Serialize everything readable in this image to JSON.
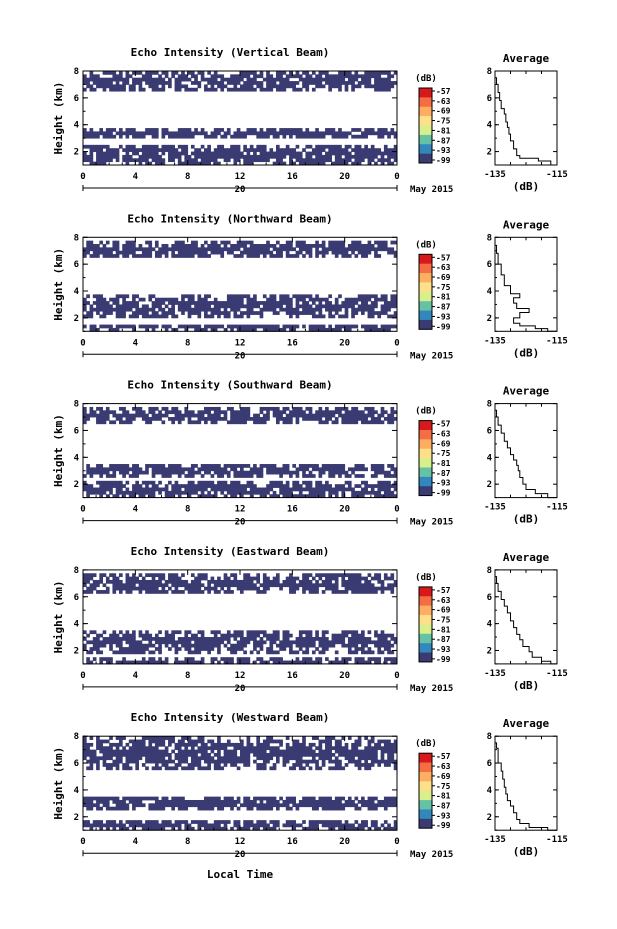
{
  "figure": {
    "xlabel": "Local Time",
    "colors": {
      "echo": "#3b3b73",
      "background": "#ffffff",
      "axis": "#000000"
    }
  },
  "chart_data": [
    {
      "type": "heatmap",
      "title": "Echo Intensity (Vertical Beam)",
      "ylabel": "Height (km)",
      "x_ticks": [
        "0",
        "4",
        "8",
        "12",
        "16",
        "20",
        "0"
      ],
      "xlim": [
        0,
        24
      ],
      "ylim": [
        1,
        8
      ],
      "y_ticks": [
        "2",
        "4",
        "6",
        "8"
      ],
      "day_label": "20",
      "month_label": "May 2015",
      "colorbar": {
        "unit": "(dB)",
        "ticks": [
          "-57",
          "-63",
          "-69",
          "-75",
          "-81",
          "-87",
          "-93",
          "-99"
        ]
      },
      "echo_bands_km": [
        [
          1.0,
          2.5
        ],
        [
          2.9,
          3.8
        ],
        [
          6.6,
          7.9
        ]
      ],
      "average": {
        "title": "Average",
        "xlabel": "(dB)",
        "x_ticks": [
          "-135",
          "-115"
        ],
        "y_ticks": [
          "2",
          "4",
          "6",
          "8"
        ],
        "xlim": [
          -135,
          -115
        ],
        "ylim": [
          1,
          8
        ],
        "x": [
          -115,
          -117,
          -121,
          -127,
          -128,
          -129,
          -130,
          -130.5,
          -131,
          -131.5,
          -132,
          -133,
          -133.5,
          -134,
          -134.5,
          -135
        ],
        "y": [
          1.0,
          1.3,
          1.5,
          1.7,
          2.2,
          2.8,
          3.3,
          3.8,
          4.2,
          4.8,
          5.2,
          5.8,
          6.4,
          7.0,
          7.5,
          8.0
        ]
      }
    },
    {
      "type": "heatmap",
      "title": "Echo Intensity (Northward Beam)",
      "ylabel": "Height (km)",
      "x_ticks": [
        "0",
        "4",
        "8",
        "12",
        "16",
        "20",
        "0"
      ],
      "xlim": [
        0,
        24
      ],
      "ylim": [
        1,
        8
      ],
      "y_ticks": [
        "2",
        "4",
        "6",
        "8"
      ],
      "day_label": "20",
      "month_label": "May 2015",
      "colorbar": {
        "unit": "(dB)",
        "ticks": [
          "-57",
          "-63",
          "-69",
          "-75",
          "-81",
          "-87",
          "-93",
          "-99"
        ]
      },
      "echo_bands_km": [
        [
          1.0,
          1.6
        ],
        [
          2.0,
          3.7
        ],
        [
          6.5,
          7.8
        ]
      ],
      "average": {
        "title": "Average",
        "xlabel": "(dB)",
        "x_ticks": [
          "-135",
          "-115"
        ],
        "y_ticks": [
          "2",
          "4",
          "6",
          "8"
        ],
        "xlim": [
          -135,
          -115
        ],
        "ylim": [
          1,
          8
        ],
        "x": [
          -115,
          -118,
          -122,
          -127,
          -129,
          -127,
          -124,
          -128,
          -129,
          -127,
          -130,
          -132,
          -133,
          -134,
          -134.5,
          -135
        ],
        "y": [
          1.0,
          1.2,
          1.4,
          1.6,
          2.0,
          2.4,
          2.7,
          3.1,
          3.5,
          3.8,
          4.4,
          5.2,
          6.0,
          6.8,
          7.4,
          8.0
        ]
      }
    },
    {
      "type": "heatmap",
      "title": "Echo Intensity (Southward Beam)",
      "ylabel": "Height (km)",
      "x_ticks": [
        "0",
        "4",
        "8",
        "12",
        "16",
        "20",
        "0"
      ],
      "xlim": [
        0,
        24
      ],
      "ylim": [
        1,
        8
      ],
      "y_ticks": [
        "2",
        "4",
        "6",
        "8"
      ],
      "day_label": "20",
      "month_label": "May 2015",
      "colorbar": {
        "unit": "(dB)",
        "ticks": [
          "-57",
          "-63",
          "-69",
          "-75",
          "-81",
          "-87",
          "-93",
          "-99"
        ]
      },
      "echo_bands_km": [
        [
          1.0,
          2.2
        ],
        [
          2.6,
          3.6
        ],
        [
          6.4,
          7.8
        ]
      ],
      "average": {
        "title": "Average",
        "xlabel": "(dB)",
        "x_ticks": [
          "-135",
          "-115"
        ],
        "y_ticks": [
          "2",
          "4",
          "6",
          "8"
        ],
        "xlim": [
          -135,
          -115
        ],
        "ylim": [
          1,
          8
        ],
        "x": [
          -115,
          -118,
          -122,
          -125,
          -126,
          -127,
          -127.5,
          -128,
          -129,
          -130,
          -131,
          -132,
          -133,
          -134,
          -134.5,
          -135
        ],
        "y": [
          1.0,
          1.3,
          1.6,
          2.0,
          2.5,
          3.0,
          3.4,
          3.8,
          4.2,
          4.7,
          5.2,
          5.8,
          6.4,
          7.0,
          7.5,
          8.0
        ]
      }
    },
    {
      "type": "heatmap",
      "title": "Echo Intensity (Eastward Beam)",
      "ylabel": "Height (km)",
      "x_ticks": [
        "0",
        "4",
        "8",
        "12",
        "16",
        "20",
        "0"
      ],
      "xlim": [
        0,
        24
      ],
      "ylim": [
        1,
        8
      ],
      "y_ticks": [
        "2",
        "4",
        "6",
        "8"
      ],
      "day_label": "20",
      "month_label": "May 2015",
      "colorbar": {
        "unit": "(dB)",
        "ticks": [
          "-57",
          "-63",
          "-69",
          "-75",
          "-81",
          "-87",
          "-93",
          "-99"
        ]
      },
      "echo_bands_km": [
        [
          1.0,
          1.4
        ],
        [
          1.8,
          3.5
        ],
        [
          6.2,
          7.8
        ]
      ],
      "average": {
        "title": "Average",
        "xlabel": "(dB)",
        "x_ticks": [
          "-135",
          "-115"
        ],
        "y_ticks": [
          "2",
          "4",
          "6",
          "8"
        ],
        "xlim": [
          -135,
          -115
        ],
        "ylim": [
          1,
          8
        ],
        "x": [
          -115,
          -117,
          -120,
          -123,
          -124,
          -126,
          -127,
          -128,
          -129,
          -130,
          -131,
          -132,
          -133,
          -134,
          -134.5,
          -135
        ],
        "y": [
          1.0,
          1.2,
          1.5,
          1.9,
          2.3,
          2.8,
          3.2,
          3.7,
          4.2,
          4.8,
          5.3,
          5.8,
          6.4,
          7.0,
          7.5,
          8.0
        ]
      }
    },
    {
      "type": "heatmap",
      "title": "Echo Intensity (Westward Beam)",
      "ylabel": "Height (km)",
      "x_ticks": [
        "0",
        "4",
        "8",
        "12",
        "16",
        "20",
        "0"
      ],
      "xlim": [
        0,
        24
      ],
      "ylim": [
        1,
        8
      ],
      "y_ticks": [
        "2",
        "4",
        "6",
        "8"
      ],
      "day_label": "20",
      "month_label": "May 2015",
      "colorbar": {
        "unit": "(dB)",
        "ticks": [
          "-57",
          "-63",
          "-69",
          "-75",
          "-81",
          "-87",
          "-93",
          "-99"
        ]
      },
      "echo_bands_km": [
        [
          1.0,
          1.7
        ],
        [
          2.4,
          3.6
        ],
        [
          5.6,
          7.9
        ]
      ],
      "average": {
        "title": "Average",
        "xlabel": "(dB)",
        "x_ticks": [
          "-135",
          "-115"
        ],
        "y_ticks": [
          "2",
          "4",
          "6",
          "8"
        ],
        "xlim": [
          -135,
          -115
        ],
        "ylim": [
          1,
          8
        ],
        "x": [
          -115,
          -118,
          -124,
          -127,
          -128,
          -129,
          -130,
          -131,
          -131.5,
          -132,
          -132.5,
          -133,
          -134,
          -134,
          -134.5,
          -135
        ],
        "y": [
          1.0,
          1.2,
          1.5,
          1.8,
          2.3,
          2.8,
          3.2,
          3.7,
          4.2,
          4.8,
          5.4,
          6.0,
          6.6,
          7.1,
          7.5,
          8.0
        ]
      }
    }
  ]
}
